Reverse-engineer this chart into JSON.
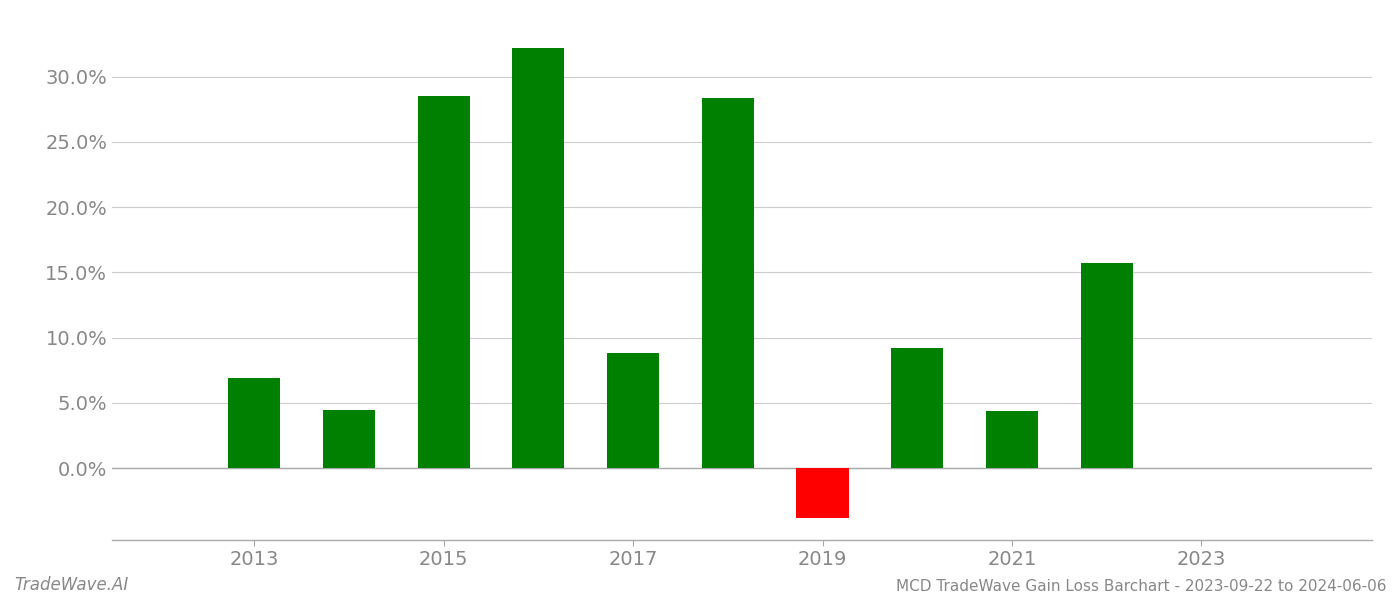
{
  "years": [
    2013,
    2014,
    2015,
    2016,
    2017,
    2018,
    2019,
    2020,
    2021,
    2022,
    2023
  ],
  "values": [
    0.069,
    0.045,
    0.285,
    0.322,
    0.088,
    0.284,
    -0.038,
    0.092,
    0.044,
    0.157,
    0.0
  ],
  "bar_colors": [
    "#008000",
    "#008000",
    "#008000",
    "#008000",
    "#008000",
    "#008000",
    "#ff0000",
    "#008000",
    "#008000",
    "#008000",
    "#008000"
  ],
  "title": "MCD TradeWave Gain Loss Barchart - 2023-09-22 to 2024-06-06",
  "watermark": "TradeWave.AI",
  "ylim_min": -0.055,
  "ylim_max": 0.345,
  "background_color": "#ffffff",
  "grid_color": "#cccccc",
  "bar_width": 0.55,
  "tick_years": [
    2013,
    2015,
    2017,
    2019,
    2021,
    2023
  ],
  "yticks": [
    0.0,
    0.05,
    0.1,
    0.15,
    0.2,
    0.25,
    0.3
  ],
  "xlim_left": 2011.5,
  "xlim_right": 2024.8,
  "tick_fontsize": 14,
  "title_fontsize": 11,
  "watermark_fontsize": 12
}
